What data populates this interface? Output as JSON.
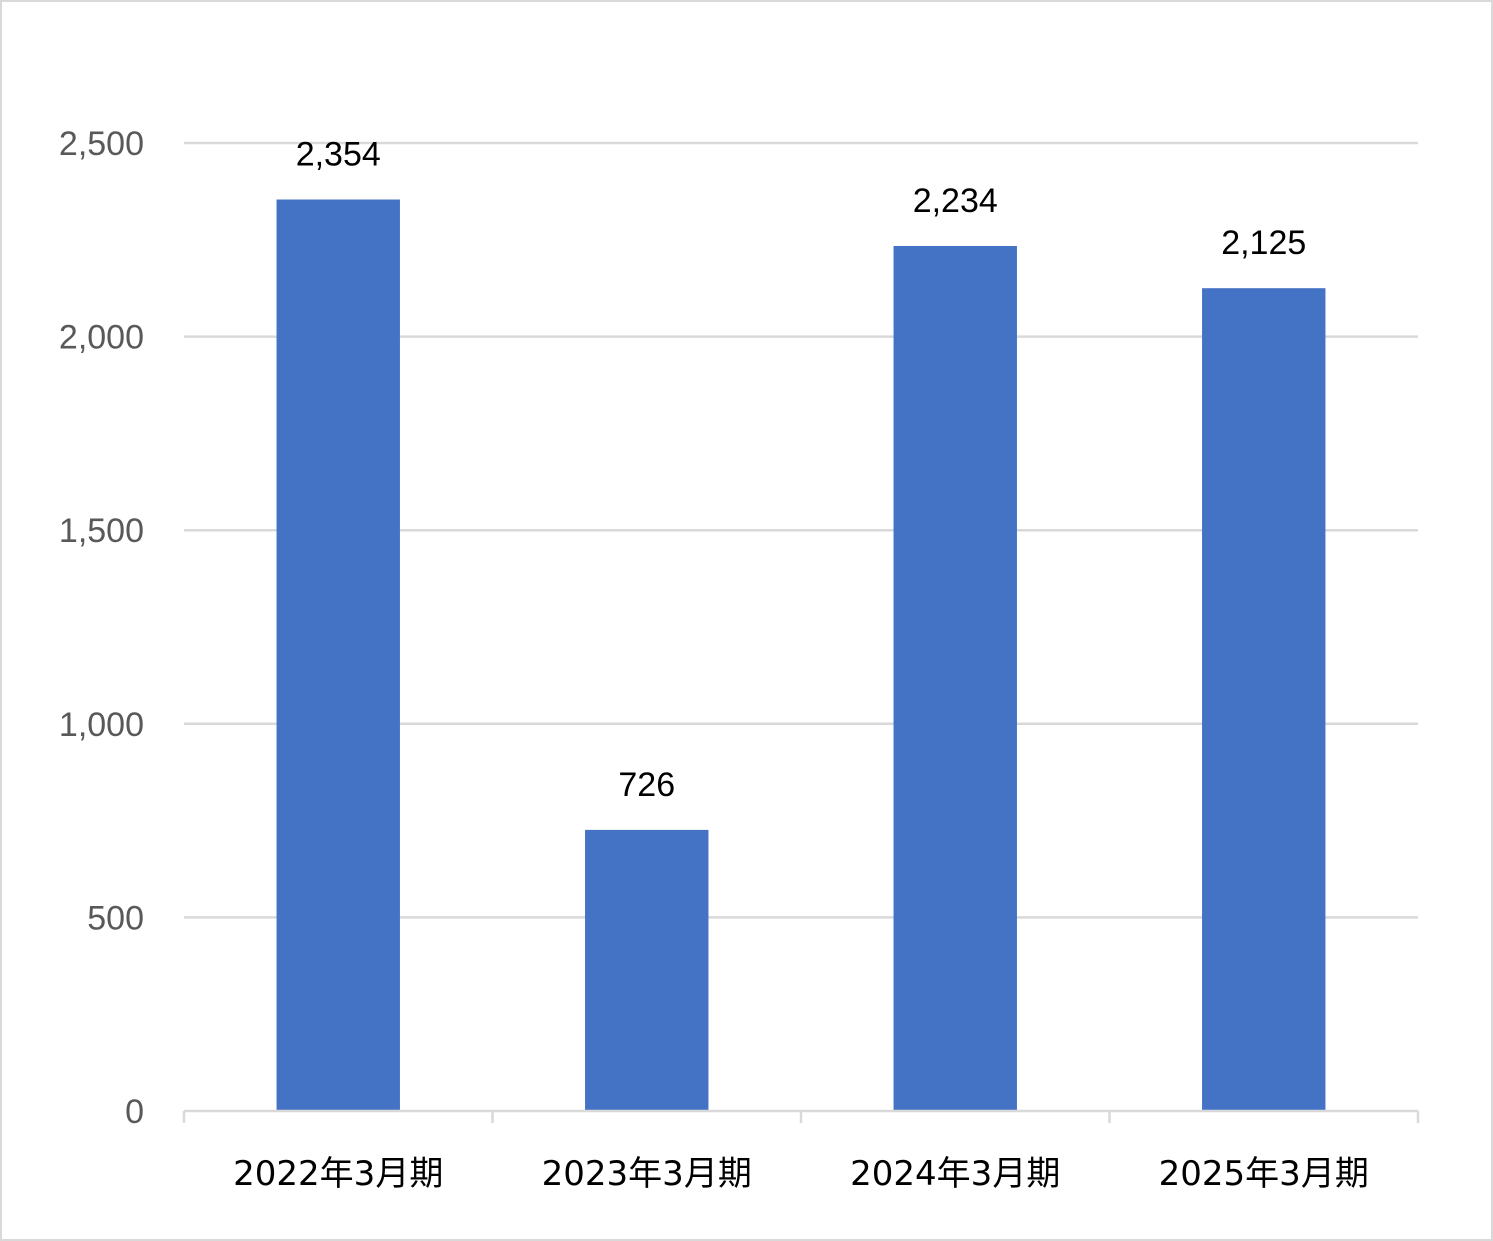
{
  "chart_data": {
    "type": "bar",
    "title": "",
    "xlabel": "",
    "ylabel": "",
    "categories": [
      "2022年3月期",
      "2023年3月期",
      "2024年3月期",
      "2025年3月期"
    ],
    "values": [
      2354,
      726,
      2234,
      2125
    ],
    "data_labels": [
      "2,354",
      "726",
      "2,234",
      "2,125"
    ],
    "ylim": [
      0,
      2500
    ],
    "yticks": [
      0,
      500,
      1000,
      1500,
      2000,
      2500
    ],
    "ytick_labels": [
      "0",
      "500",
      "1,000",
      "1,500",
      "2,000",
      "2,500"
    ],
    "grid": true,
    "legend": "none",
    "colors": {
      "bar": "#4472c4",
      "grid": "#d9d9d9",
      "axis": "#d9d9d9",
      "tick_text": "#595959",
      "label_text": "#000000"
    }
  }
}
